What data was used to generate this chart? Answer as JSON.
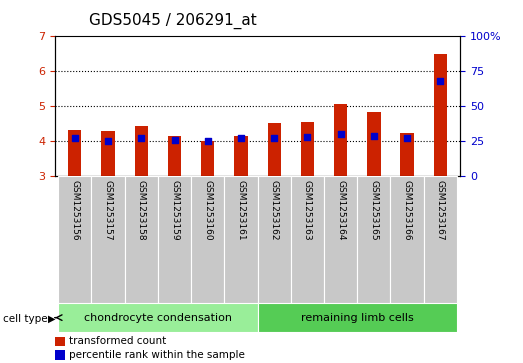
{
  "title": "GDS5045 / 206291_at",
  "samples": [
    "GSM1253156",
    "GSM1253157",
    "GSM1253158",
    "GSM1253159",
    "GSM1253160",
    "GSM1253161",
    "GSM1253162",
    "GSM1253163",
    "GSM1253164",
    "GSM1253165",
    "GSM1253166",
    "GSM1253167"
  ],
  "transformed_count": [
    4.33,
    4.28,
    4.43,
    4.15,
    4.0,
    4.15,
    4.53,
    4.55,
    5.05,
    4.82,
    4.22,
    6.5
  ],
  "percentile_rank": [
    27,
    25,
    27,
    26,
    25,
    27,
    27,
    28,
    30,
    29,
    27,
    68
  ],
  "baseline": 3.0,
  "ylim_left": [
    3,
    7
  ],
  "ylim_right": [
    0,
    100
  ],
  "yticks_left": [
    3,
    4,
    5,
    6,
    7
  ],
  "yticks_right": [
    0,
    25,
    50,
    75,
    100
  ],
  "bar_color": "#cc2200",
  "percentile_color": "#0000cc",
  "bg_color": "#ffffff",
  "cell_type_groups": [
    {
      "label": "chondrocyte condensation",
      "start": 0,
      "end": 6,
      "color": "#99ee99"
    },
    {
      "label": "remaining limb cells",
      "start": 6,
      "end": 12,
      "color": "#55cc55"
    }
  ],
  "cell_type_label": "cell type",
  "legend_items": [
    {
      "label": "transformed count",
      "color": "#cc2200"
    },
    {
      "label": "percentile rank within the sample",
      "color": "#0000cc"
    }
  ],
  "bar_width": 0.4,
  "tick_label_area_color": "#c8c8c8",
  "title_fontsize": 11
}
